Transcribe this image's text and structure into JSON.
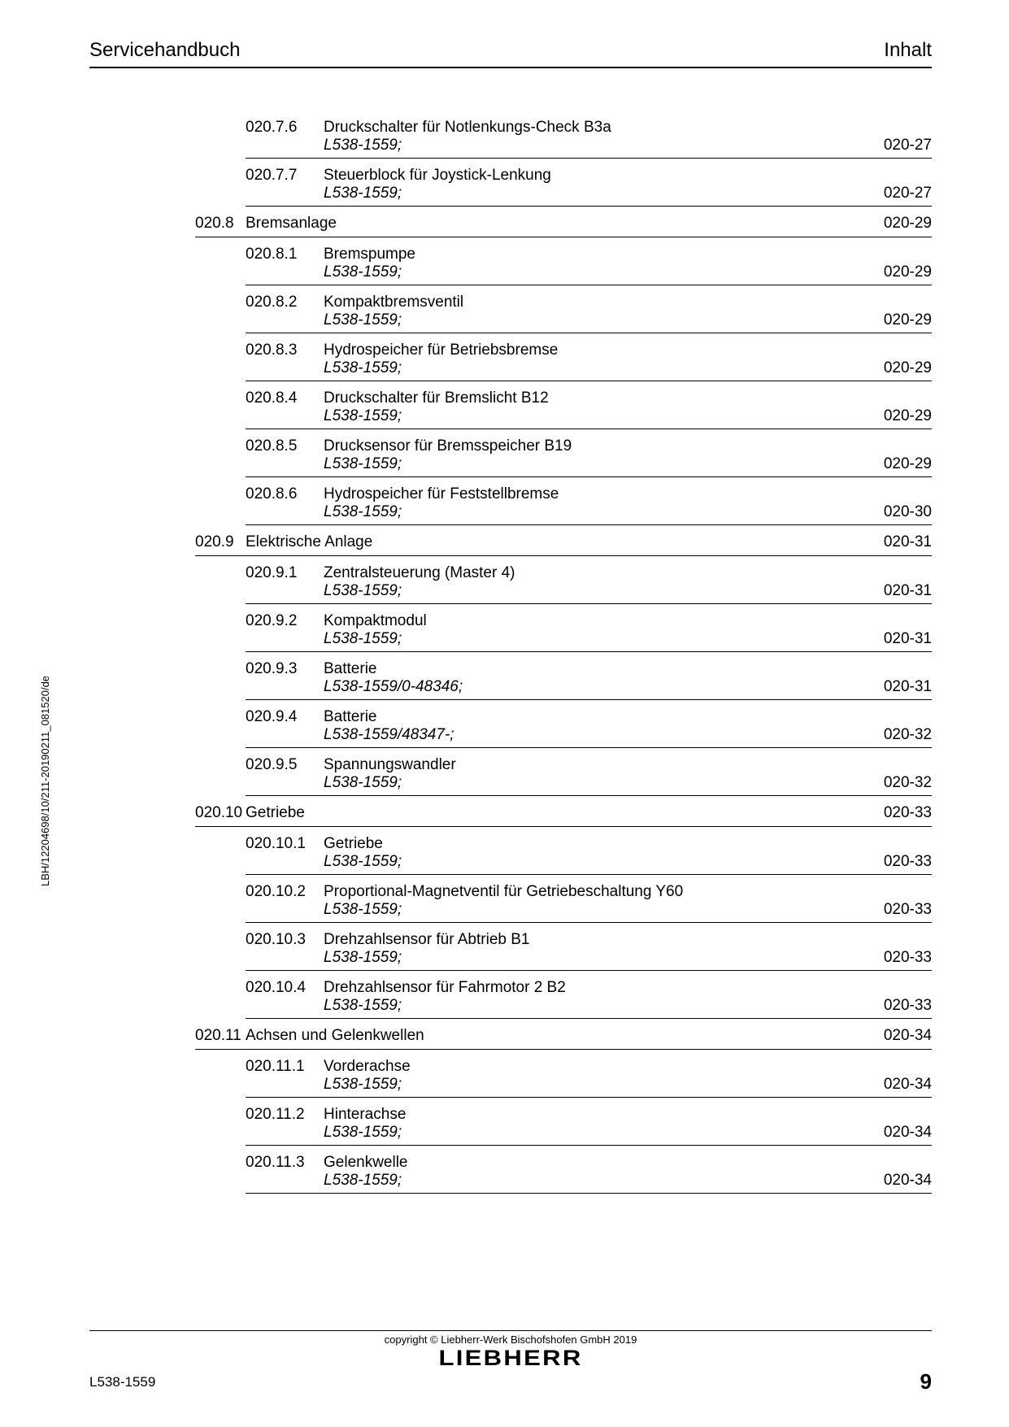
{
  "header": {
    "left": "Servicehandbuch",
    "right": "Inhalt"
  },
  "sidebar_text": "LBH/12204698/10/211-20190211_081520/de",
  "footer": {
    "copyright": "copyright © Liebherr-Werk Bischofshofen GmbH 2019",
    "logo": "LIEBHERR",
    "model": "L538-1559",
    "page": "9"
  },
  "toc": [
    {
      "type": "sub",
      "num": "020.7.6",
      "title": "Druckschalter für Notlenkungs-Check B3a",
      "model": "L538-1559;",
      "page": "020-27"
    },
    {
      "type": "sub",
      "num": "020.7.7",
      "title": "Steuerblock für Joystick-Lenkung",
      "model": "L538-1559;",
      "page": "020-27"
    },
    {
      "type": "section",
      "num": "020.8",
      "title": "Bremsanlage",
      "page": "020-29"
    },
    {
      "type": "sub",
      "num": "020.8.1",
      "title": "Bremspumpe",
      "model": "L538-1559;",
      "page": "020-29"
    },
    {
      "type": "sub",
      "num": "020.8.2",
      "title": "Kompaktbremsventil",
      "model": "L538-1559;",
      "page": "020-29"
    },
    {
      "type": "sub",
      "num": "020.8.3",
      "title": "Hydrospeicher für Betriebsbremse",
      "model": "L538-1559;",
      "page": "020-29"
    },
    {
      "type": "sub",
      "num": "020.8.4",
      "title": "Druckschalter für Bremslicht B12",
      "model": "L538-1559;",
      "page": "020-29"
    },
    {
      "type": "sub",
      "num": "020.8.5",
      "title": "Drucksensor für Bremsspeicher B19",
      "model": "L538-1559;",
      "page": "020-29"
    },
    {
      "type": "sub",
      "num": "020.8.6",
      "title": "Hydrospeicher für Feststellbremse",
      "model": "L538-1559;",
      "page": "020-30"
    },
    {
      "type": "section",
      "num": "020.9",
      "title": "Elektrische Anlage",
      "page": "020-31"
    },
    {
      "type": "sub",
      "num": "020.9.1",
      "title": "Zentralsteuerung (Master 4)",
      "model": "L538-1559;",
      "page": "020-31"
    },
    {
      "type": "sub",
      "num": "020.9.2",
      "title": "Kompaktmodul",
      "model": "L538-1559;",
      "page": "020-31"
    },
    {
      "type": "sub",
      "num": "020.9.3",
      "title": "Batterie",
      "model": "L538-1559/0-48346;",
      "page": "020-31"
    },
    {
      "type": "sub",
      "num": "020.9.4",
      "title": "Batterie",
      "model": "L538-1559/48347-;",
      "page": "020-32"
    },
    {
      "type": "sub",
      "num": "020.9.5",
      "title": "Spannungswandler",
      "model": "L538-1559;",
      "page": "020-32"
    },
    {
      "type": "section",
      "num": "020.10",
      "title": "Getriebe",
      "page": "020-33"
    },
    {
      "type": "sub",
      "num": "020.10.1",
      "title": "Getriebe",
      "model": "L538-1559;",
      "page": "020-33"
    },
    {
      "type": "sub",
      "num": "020.10.2",
      "title": "Proportional-Magnetventil für Getriebeschaltung Y60",
      "model": "L538-1559;",
      "page": "020-33"
    },
    {
      "type": "sub",
      "num": "020.10.3",
      "title": "Drehzahlsensor für Abtrieb B1",
      "model": "L538-1559;",
      "page": "020-33"
    },
    {
      "type": "sub",
      "num": "020.10.4",
      "title": "Drehzahlsensor für Fahrmotor 2 B2",
      "model": "L538-1559;",
      "page": "020-33"
    },
    {
      "type": "section",
      "num": "020.11",
      "title": "Achsen und Gelenkwellen",
      "page": "020-34"
    },
    {
      "type": "sub",
      "num": "020.11.1",
      "title": "Vorderachse",
      "model": "L538-1559;",
      "page": "020-34"
    },
    {
      "type": "sub",
      "num": "020.11.2",
      "title": "Hinterachse",
      "model": "L538-1559;",
      "page": "020-34"
    },
    {
      "type": "sub",
      "num": "020.11.3",
      "title": "Gelenkwelle",
      "model": "L538-1559;",
      "page": "020-34"
    }
  ]
}
